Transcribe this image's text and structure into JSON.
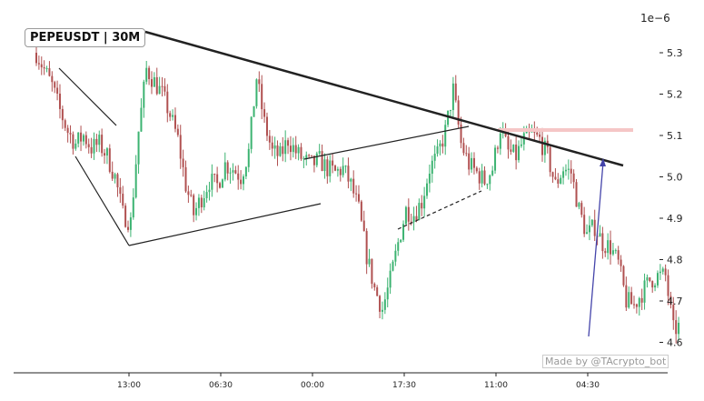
{
  "chart_data": {
    "type": "candlestick",
    "title": "PEPEUSDT | 30M",
    "watermark": "Made by @TAcrypto_bot",
    "y_multiplier": "1e−6",
    "ylim": [
      4.57,
      5.36
    ],
    "y_ticks": [
      "5.3",
      "5.2",
      "5.1",
      "5.0",
      "4.9",
      "4.8",
      "4.7",
      "4.6"
    ],
    "x_ticks": [
      "13:00",
      "06:30",
      "00:00",
      "17:30",
      "11:00",
      "04:30"
    ],
    "price_path": [
      5.3,
      5.26,
      5.22,
      5.16,
      5.11,
      5.08,
      5.1,
      5.07,
      5.08,
      5.05,
      5.0,
      4.91,
      4.89,
      5.11,
      5.26,
      5.23,
      5.2,
      5.15,
      5.09,
      4.98,
      4.91,
      4.95,
      4.99,
      4.98,
      5.03,
      5.02,
      5.0,
      5.06,
      5.24,
      5.13,
      5.06,
      5.05,
      5.09,
      5.06,
      5.04,
      5.03,
      5.04,
      5.02,
      5.01,
      5.02,
      4.98,
      4.92,
      4.81,
      4.73,
      4.68,
      4.75,
      4.84,
      4.92,
      4.91,
      4.94,
      5.02,
      5.05,
      5.11,
      5.21,
      5.08,
      5.03,
      5.01,
      4.99,
      5.02,
      5.12,
      5.06,
      5.05,
      5.09,
      5.1,
      5.09,
      5.05,
      4.98,
      5.02,
      5.01,
      4.92,
      4.86,
      4.88,
      4.84,
      4.83,
      4.79,
      4.7,
      4.69,
      4.72,
      4.75,
      4.76,
      4.76,
      4.63,
      4.64
    ],
    "colors": {
      "up": "#3cb371",
      "down": "#b05050",
      "trend": "#222222",
      "arrow": "#4444aa",
      "resistance": "#f5c6c6"
    }
  }
}
